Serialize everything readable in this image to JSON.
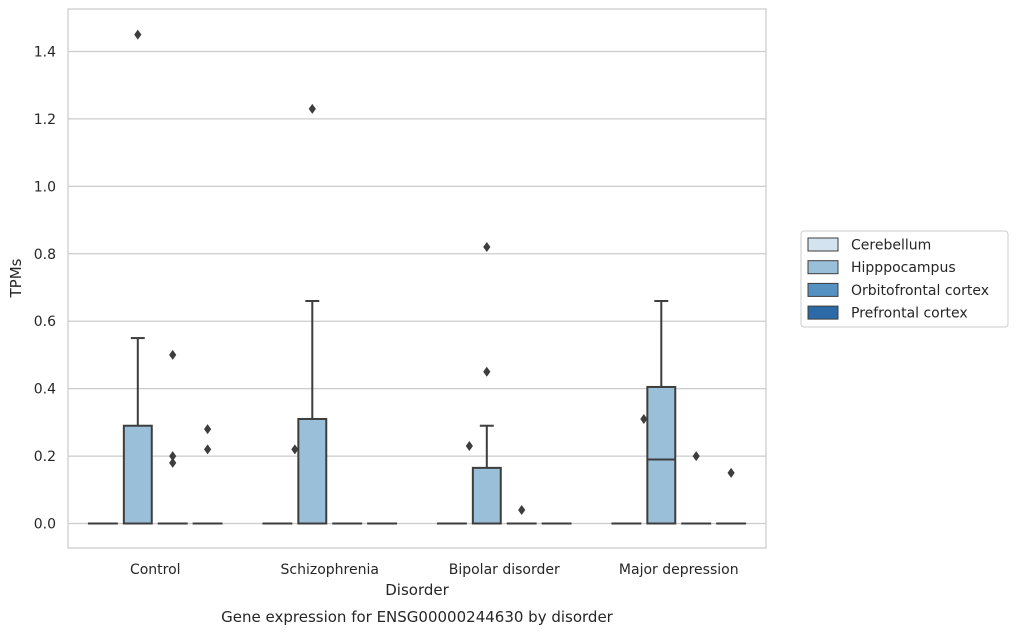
{
  "chart_data": {
    "type": "box",
    "title": "Gene expression for ENSG00000244630 by disorder",
    "xlabel": "Disorder",
    "ylabel": "TPMs",
    "categories": [
      "Control",
      "Schizophrenia",
      "Bipolar disorder",
      "Major depression"
    ],
    "ylim": [
      -0.07,
      1.53
    ],
    "yticks": [
      "0.0",
      "0.2",
      "0.4",
      "0.6",
      "0.8",
      "1.0",
      "1.2",
      "1.4"
    ],
    "grid": true,
    "legend_position": "right",
    "series": [
      {
        "name": "Cerebellum",
        "color": "#d4e3f0",
        "boxes": [
          {
            "category": "Control",
            "q1": 0,
            "median": 0,
            "q3": 0,
            "whisker_low": 0,
            "whisker_high": 0,
            "outliers": []
          },
          {
            "category": "Schizophrenia",
            "q1": 0,
            "median": 0,
            "q3": 0,
            "whisker_low": 0,
            "whisker_high": 0,
            "outliers": []
          },
          {
            "category": "Bipolar disorder",
            "q1": 0,
            "median": 0,
            "q3": 0,
            "whisker_low": 0,
            "whisker_high": 0,
            "outliers": []
          },
          {
            "category": "Major depression",
            "q1": 0,
            "median": 0,
            "q3": 0,
            "whisker_low": 0,
            "whisker_high": 0,
            "outliers": []
          }
        ]
      },
      {
        "name": "Hipppocampus",
        "color": "#9ac0d9",
        "boxes": [
          {
            "category": "Control",
            "q1": 0,
            "median": 0,
            "q3": 0.29,
            "whisker_low": 0,
            "whisker_high": 0.55,
            "outliers": [
              1.45
            ]
          },
          {
            "category": "Schizophrenia",
            "q1": 0,
            "median": 0,
            "q3": 0.31,
            "whisker_low": 0,
            "whisker_high": 0.66,
            "outliers": [
              1.23
            ]
          },
          {
            "category": "Bipolar disorder",
            "q1": 0,
            "median": 0,
            "q3": 0.165,
            "whisker_low": 0,
            "whisker_high": 0.29,
            "outliers": [
              0.82,
              0.45
            ]
          },
          {
            "category": "Major depression",
            "q1": 0,
            "median": 0.19,
            "q3": 0.405,
            "whisker_low": 0,
            "whisker_high": 0.66,
            "outliers": []
          }
        ]
      },
      {
        "name": "Orbitofrontal cortex",
        "color": "#5592c2",
        "boxes": [
          {
            "category": "Control",
            "q1": 0,
            "median": 0,
            "q3": 0,
            "whisker_low": 0,
            "whisker_high": 0,
            "outliers": [
              0.5,
              0.2,
              0.18
            ]
          },
          {
            "category": "Schizophrenia",
            "q1": 0,
            "median": 0,
            "q3": 0,
            "whisker_low": 0,
            "whisker_high": 0,
            "outliers": []
          },
          {
            "category": "Bipolar disorder",
            "q1": 0,
            "median": 0,
            "q3": 0,
            "whisker_low": 0,
            "whisker_high": 0,
            "outliers": [
              0.04
            ]
          },
          {
            "category": "Major depression",
            "q1": 0,
            "median": 0,
            "q3": 0,
            "whisker_low": 0,
            "whisker_high": 0,
            "outliers": [
              0.2
            ]
          }
        ]
      },
      {
        "name": "Prefrontal cortex",
        "color": "#2b6aa6",
        "boxes": [
          {
            "category": "Control",
            "q1": 0,
            "median": 0,
            "q3": 0,
            "whisker_low": 0,
            "whisker_high": 0,
            "outliers": [
              0.28,
              0.22
            ]
          },
          {
            "category": "Schizophrenia",
            "q1": 0,
            "median": 0,
            "q3": 0,
            "whisker_low": 0,
            "whisker_high": 0,
            "outliers": []
          },
          {
            "category": "Bipolar disorder",
            "q1": 0,
            "median": 0,
            "q3": 0,
            "whisker_low": 0,
            "whisker_high": 0,
            "outliers": []
          },
          {
            "category": "Major depression",
            "q1": 0,
            "median": 0,
            "q3": 0,
            "whisker_low": 0,
            "whisker_high": 0,
            "outliers": [
              0.15
            ]
          }
        ]
      }
    ],
    "extra_outliers": [
      {
        "category": "Schizophrenia",
        "between": [
          "Cerebellum",
          "Hipppocampus"
        ],
        "value": 0.22
      },
      {
        "category": "Bipolar disorder",
        "between": [
          "Cerebellum",
          "Hipppocampus"
        ],
        "value": 0.23
      },
      {
        "category": "Major depression",
        "between": [
          "Cerebellum",
          "Hipppocampus"
        ],
        "value": 0.31
      }
    ]
  }
}
